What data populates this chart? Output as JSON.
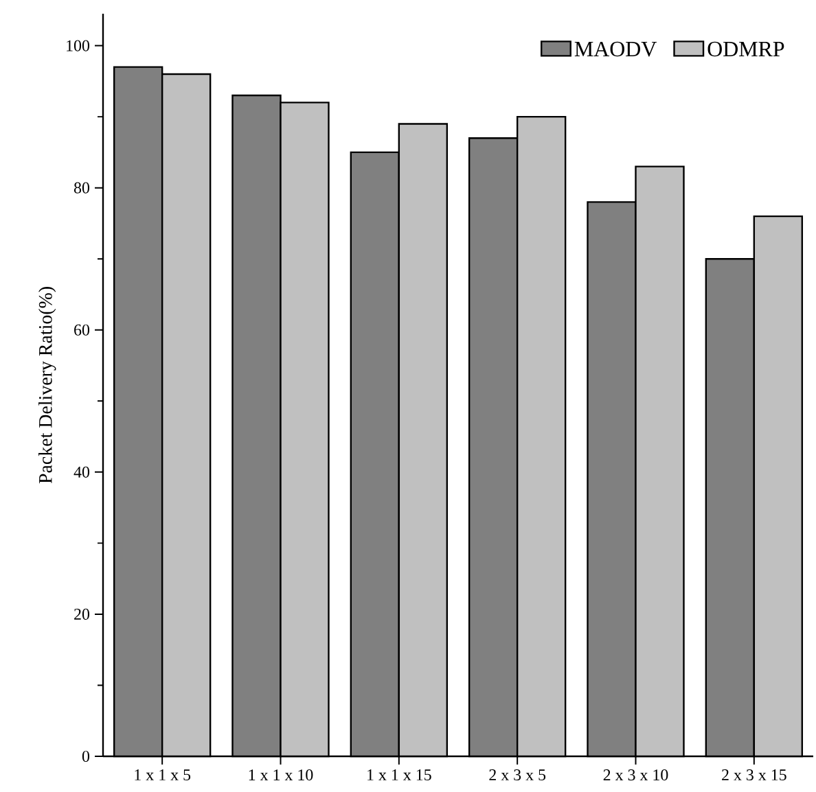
{
  "chart_data": {
    "type": "bar",
    "ylabel": "Packet Delivery Ratio(%)",
    "categories": [
      "1 x 1 x 5",
      "1 x 1 x 10",
      "1 x 1 x 15",
      "2 x 3 x 5",
      "2 x 3 x 10",
      "2 x 3 x 15"
    ],
    "series": [
      {
        "name": "MAODV",
        "color": "#808080",
        "values": [
          97,
          93,
          85,
          87,
          78,
          70
        ]
      },
      {
        "name": "ODMRP",
        "color": "#c0c0c0",
        "values": [
          96,
          92,
          89,
          90,
          83,
          76
        ]
      }
    ],
    "ylim": [
      0,
      104.5
    ],
    "yticks": [
      0,
      {
        "value": 10,
        "label": null
      },
      20,
      {
        "value": 30,
        "label": null
      },
      40,
      {
        "value": 50,
        "label": null
      },
      60,
      {
        "value": 70,
        "label": null
      },
      80,
      {
        "value": 90,
        "label": null
      },
      100
    ],
    "grid": false,
    "legend": "top right"
  }
}
